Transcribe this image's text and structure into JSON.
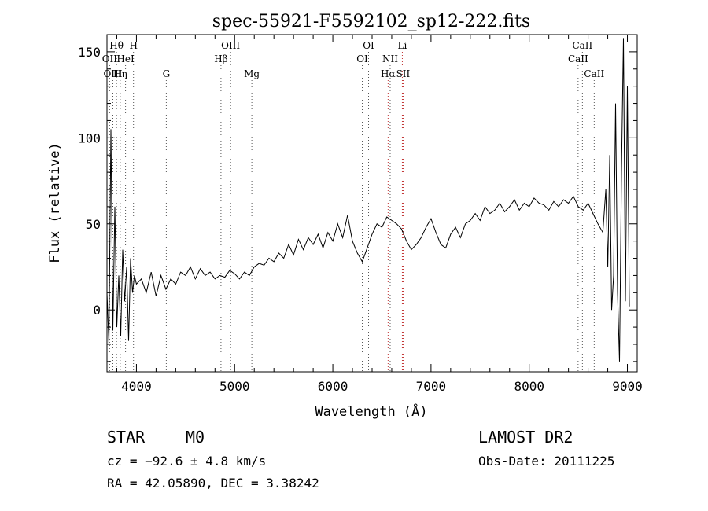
{
  "chart_data": {
    "type": "line",
    "title": "spec-55921-F5592102_sp12-222.fits",
    "xlabel": "Wavelength (Å)",
    "ylabel": "Flux (relative)",
    "xlim": [
      3700,
      9100
    ],
    "ylim": [
      -36,
      160
    ],
    "x_ticks": [
      4000,
      5000,
      6000,
      7000,
      8000,
      9000
    ],
    "y_ticks": [
      0,
      50,
      100,
      150
    ],
    "grid": false,
    "series": [
      {
        "color": "#000000",
        "x": [
          3700,
          3720,
          3740,
          3760,
          3780,
          3800,
          3820,
          3840,
          3860,
          3880,
          3900,
          3920,
          3940,
          3960,
          3980,
          4000,
          4050,
          4100,
          4150,
          4200,
          4250,
          4300,
          4350,
          4400,
          4450,
          4500,
          4550,
          4600,
          4650,
          4700,
          4750,
          4800,
          4850,
          4900,
          4950,
          5000,
          5050,
          5100,
          5150,
          5200,
          5250,
          5300,
          5350,
          5400,
          5450,
          5500,
          5550,
          5600,
          5650,
          5700,
          5750,
          5800,
          5850,
          5900,
          5950,
          6000,
          6050,
          6100,
          6150,
          6200,
          6250,
          6300,
          6350,
          6400,
          6450,
          6500,
          6550,
          6600,
          6650,
          6700,
          6750,
          6800,
          6850,
          6900,
          6950,
          7000,
          7050,
          7100,
          7150,
          7200,
          7250,
          7300,
          7350,
          7400,
          7450,
          7500,
          7550,
          7600,
          7650,
          7700,
          7750,
          7800,
          7850,
          7900,
          7950,
          8000,
          8050,
          8100,
          8150,
          8200,
          8250,
          8300,
          8350,
          8400,
          8450,
          8500,
          8550,
          8600,
          8650,
          8700,
          8750,
          8780,
          8800,
          8820,
          8840,
          8860,
          8880,
          8900,
          8920,
          8940,
          8960,
          8980,
          9000,
          9020
        ],
        "y": [
          10,
          -20,
          105,
          -12,
          60,
          -10,
          20,
          -15,
          35,
          5,
          25,
          -18,
          30,
          10,
          20,
          15,
          18,
          10,
          22,
          8,
          20,
          12,
          18,
          15,
          22,
          20,
          25,
          18,
          24,
          20,
          22,
          18,
          20,
          19,
          23,
          21,
          18,
          22,
          20,
          25,
          27,
          26,
          30,
          28,
          33,
          30,
          38,
          32,
          41,
          35,
          42,
          38,
          44,
          36,
          45,
          40,
          50,
          42,
          55,
          40,
          33,
          28,
          36,
          44,
          50,
          48,
          54,
          52,
          50,
          47,
          40,
          35,
          38,
          42,
          48,
          53,
          45,
          38,
          36,
          44,
          48,
          42,
          50,
          52,
          56,
          52,
          60,
          56,
          58,
          62,
          57,
          60,
          64,
          58,
          62,
          60,
          65,
          62,
          61,
          58,
          63,
          60,
          64,
          62,
          66,
          60,
          58,
          62,
          56,
          50,
          45,
          70,
          25,
          90,
          0,
          20,
          120,
          10,
          -30,
          80,
          158,
          5,
          130,
          2
        ]
      }
    ],
    "line_labels": [
      {
        "text": "Hθ",
        "x": 3797,
        "row": 1
      },
      {
        "text": "H",
        "x": 3970,
        "row": 1
      },
      {
        "text": "OIII",
        "x": 4959,
        "row": 1
      },
      {
        "text": "OI",
        "x": 6364,
        "row": 1
      },
      {
        "text": "Li",
        "x": 6708,
        "row": 1
      },
      {
        "text": "CaII",
        "x": 8542,
        "row": 1
      },
      {
        "text": "OII",
        "x": 3727,
        "row": 2
      },
      {
        "text": "HeI",
        "x": 3889,
        "row": 2
      },
      {
        "text": "Hβ",
        "x": 4861,
        "row": 2
      },
      {
        "text": "OI",
        "x": 6300,
        "row": 2
      },
      {
        "text": "NII",
        "x": 6584,
        "row": 2
      },
      {
        "text": "CaII",
        "x": 8498,
        "row": 2
      },
      {
        "text": "OIII",
        "x": 3760,
        "row": 3
      },
      {
        "text": "Hη",
        "x": 3835,
        "row": 3
      },
      {
        "text": "G",
        "x": 4304,
        "row": 3
      },
      {
        "text": "Mg",
        "x": 5175,
        "row": 3
      },
      {
        "text": "Hα",
        "x": 6563,
        "row": 3
      },
      {
        "text": "SII",
        "x": 6716,
        "row": 3
      },
      {
        "text": "CaII",
        "x": 8662,
        "row": 3
      }
    ]
  },
  "info": {
    "class_label": "STAR",
    "subclass": "M0",
    "survey": "LAMOST DR2",
    "cz_line": "cz = −92.6 ± 4.8 km/s",
    "obs_date": "Obs-Date: 20111225",
    "radec_line": "RA =  42.05890, DEC =   3.38242"
  }
}
